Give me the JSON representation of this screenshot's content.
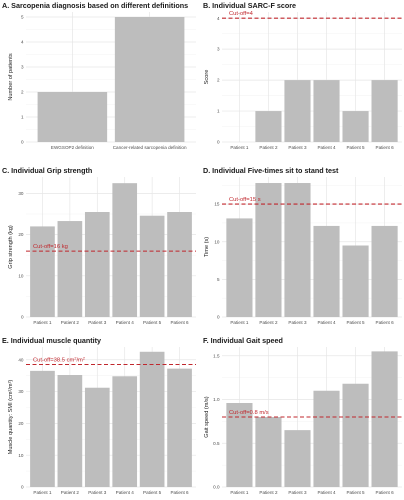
{
  "chart_data": [
    {
      "panel": "A",
      "type": "bar",
      "title": "A. Sarcopenia diagnosis based on different definitions",
      "ylabel": "Number of patients",
      "xlabel": "",
      "categories": [
        "EWGSOP2 definition",
        "Cancer-related sarcopenia definition"
      ],
      "values": [
        2,
        5
      ],
      "ylim": [
        0,
        5.2
      ],
      "yticks": [
        0,
        1,
        2,
        3,
        4,
        5
      ],
      "cutoff": null,
      "grid": true
    },
    {
      "panel": "B",
      "type": "bar",
      "title": "B. Individual SARC-F score",
      "ylabel": "Score",
      "xlabel": "",
      "categories": [
        "Patient 1",
        "Patient 2",
        "Patient 3",
        "Patient 4",
        "Patient 5",
        "Patient 6"
      ],
      "values": [
        0,
        1,
        2,
        2,
        1,
        2
      ],
      "ylim": [
        0,
        4.2
      ],
      "yticks": [
        0,
        1,
        2,
        3,
        4
      ],
      "cutoff": {
        "value": 4,
        "label": "Cut-off=4"
      },
      "grid": true
    },
    {
      "panel": "C",
      "type": "bar",
      "title": "C. Individual Grip strength",
      "ylabel": "Grip strength (kg)",
      "xlabel": "",
      "categories": [
        "Patient 1",
        "Patient 2",
        "Patient 3",
        "Patient 4",
        "Patient 5",
        "Patient 6"
      ],
      "values": [
        22,
        23.3,
        25.5,
        32.5,
        24.6,
        25.5
      ],
      "ylim": [
        0,
        34
      ],
      "yticks": [
        0,
        10,
        20,
        30
      ],
      "cutoff": {
        "value": 16,
        "label": "Cut-off=16 kg"
      },
      "grid": true
    },
    {
      "panel": "D",
      "type": "bar",
      "title": "D. Individual Five-times sit to stand test",
      "ylabel": "Time (s)",
      "xlabel": "",
      "categories": [
        "Patient 1",
        "Patient 2",
        "Patient 3",
        "Patient 4",
        "Patient 5",
        "Patient 6"
      ],
      "values": [
        13.1,
        17.8,
        17.8,
        12.1,
        9.5,
        12.1
      ],
      "ylim": [
        0,
        18.6
      ],
      "yticks": [
        0,
        5,
        10,
        15
      ],
      "cutoff": {
        "value": 15,
        "label": "Cut-off=15 s"
      },
      "grid": true
    },
    {
      "panel": "E",
      "type": "bar",
      "title": "E. Individual muscle quantity",
      "ylabel": "Muscle quantity: SMI (cm²/m²)",
      "xlabel": "",
      "categories": [
        "Patient 1",
        "Patient 2",
        "Patient 3",
        "Patient 4",
        "Patient 5",
        "Patient 6"
      ],
      "values": [
        36.5,
        35.2,
        31.2,
        34.8,
        42.5,
        37.2
      ],
      "ylim": [
        0,
        44
      ],
      "yticks": [
        0,
        10,
        20,
        30,
        40
      ],
      "cutoff": {
        "value": 38.5,
        "label": "Cut-off=38.5 cm",
        "label_unit_sup_1": "2",
        "label_mid": "/m",
        "label_unit_sup_2": "2"
      },
      "grid": true
    },
    {
      "panel": "F",
      "type": "bar",
      "title": "F. Individual Gait speed",
      "ylabel": "Gait speed (m/s)",
      "xlabel": "",
      "categories": [
        "Patient 1",
        "Patient 2",
        "Patient 3",
        "Patient 4",
        "Patient 5",
        "Patient 6"
      ],
      "values": [
        0.96,
        0.8,
        0.65,
        1.1,
        1.18,
        1.55
      ],
      "ylim": [
        0,
        1.6
      ],
      "yticks": [
        0.0,
        0.5,
        1.0,
        1.5
      ],
      "ytick_labels": [
        "0.0",
        "0.5",
        "1.0",
        "1.5"
      ],
      "cutoff": {
        "value": 0.8,
        "label": "Cut-off=0.8 m/s"
      },
      "grid": true
    }
  ],
  "colors": {
    "bar": "#bdbdbd",
    "cutoff": "#c0272d",
    "grid": "#e6e6e6"
  }
}
